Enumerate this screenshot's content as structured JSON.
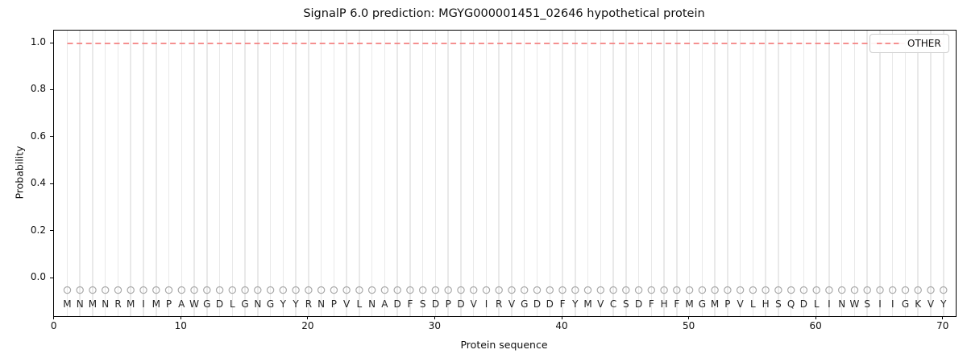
{
  "chart_data": {
    "type": "line",
    "title": "SignalP 6.0 prediction: MGYG000001451_02646 hypothetical protein",
    "xlabel": "Protein sequence",
    "ylabel": "Probability",
    "xlim": [
      0,
      71
    ],
    "ylim": [
      -0.16,
      1.055
    ],
    "xticks": [
      0,
      10,
      20,
      30,
      40,
      50,
      60,
      70
    ],
    "yticks": [
      "0.0",
      "0.2",
      "0.4",
      "0.6",
      "0.8",
      "1.0"
    ],
    "grid": "vertical line at every residue position, light gray",
    "legend_position": "upper right",
    "sequence": "MNMNRMIMPAWGDLGNGYYRNPVLNADFSDPDVIRVGDDFYMVCSDFHFMGMPVLHSQDLINWSIIGKVY",
    "residue_x_start": 1,
    "residue_x_end": 70,
    "marker_row": {
      "symbol": "circle-outline",
      "y": -0.05,
      "color": "#a9a9a9"
    },
    "letter_row_y": -0.11,
    "series": [
      {
        "name": "OTHER",
        "style": "dashed",
        "color": "#f48080",
        "values": [
          1.0,
          1.0,
          1.0,
          1.0,
          1.0,
          1.0,
          1.0,
          1.0,
          1.0,
          1.0,
          1.0,
          1.0,
          1.0,
          1.0,
          1.0,
          1.0,
          1.0,
          1.0,
          1.0,
          1.0,
          1.0,
          1.0,
          1.0,
          1.0,
          1.0,
          1.0,
          1.0,
          1.0,
          1.0,
          1.0,
          1.0,
          1.0,
          1.0,
          1.0,
          1.0,
          1.0,
          1.0,
          1.0,
          1.0,
          1.0,
          1.0,
          1.0,
          1.0,
          1.0,
          1.0,
          1.0,
          1.0,
          1.0,
          1.0,
          1.0,
          1.0,
          1.0,
          1.0,
          1.0,
          1.0,
          1.0,
          1.0,
          1.0,
          1.0,
          1.0,
          1.0,
          1.0,
          1.0,
          1.0,
          1.0,
          1.0,
          1.0,
          1.0,
          1.0,
          1.0
        ]
      }
    ]
  }
}
